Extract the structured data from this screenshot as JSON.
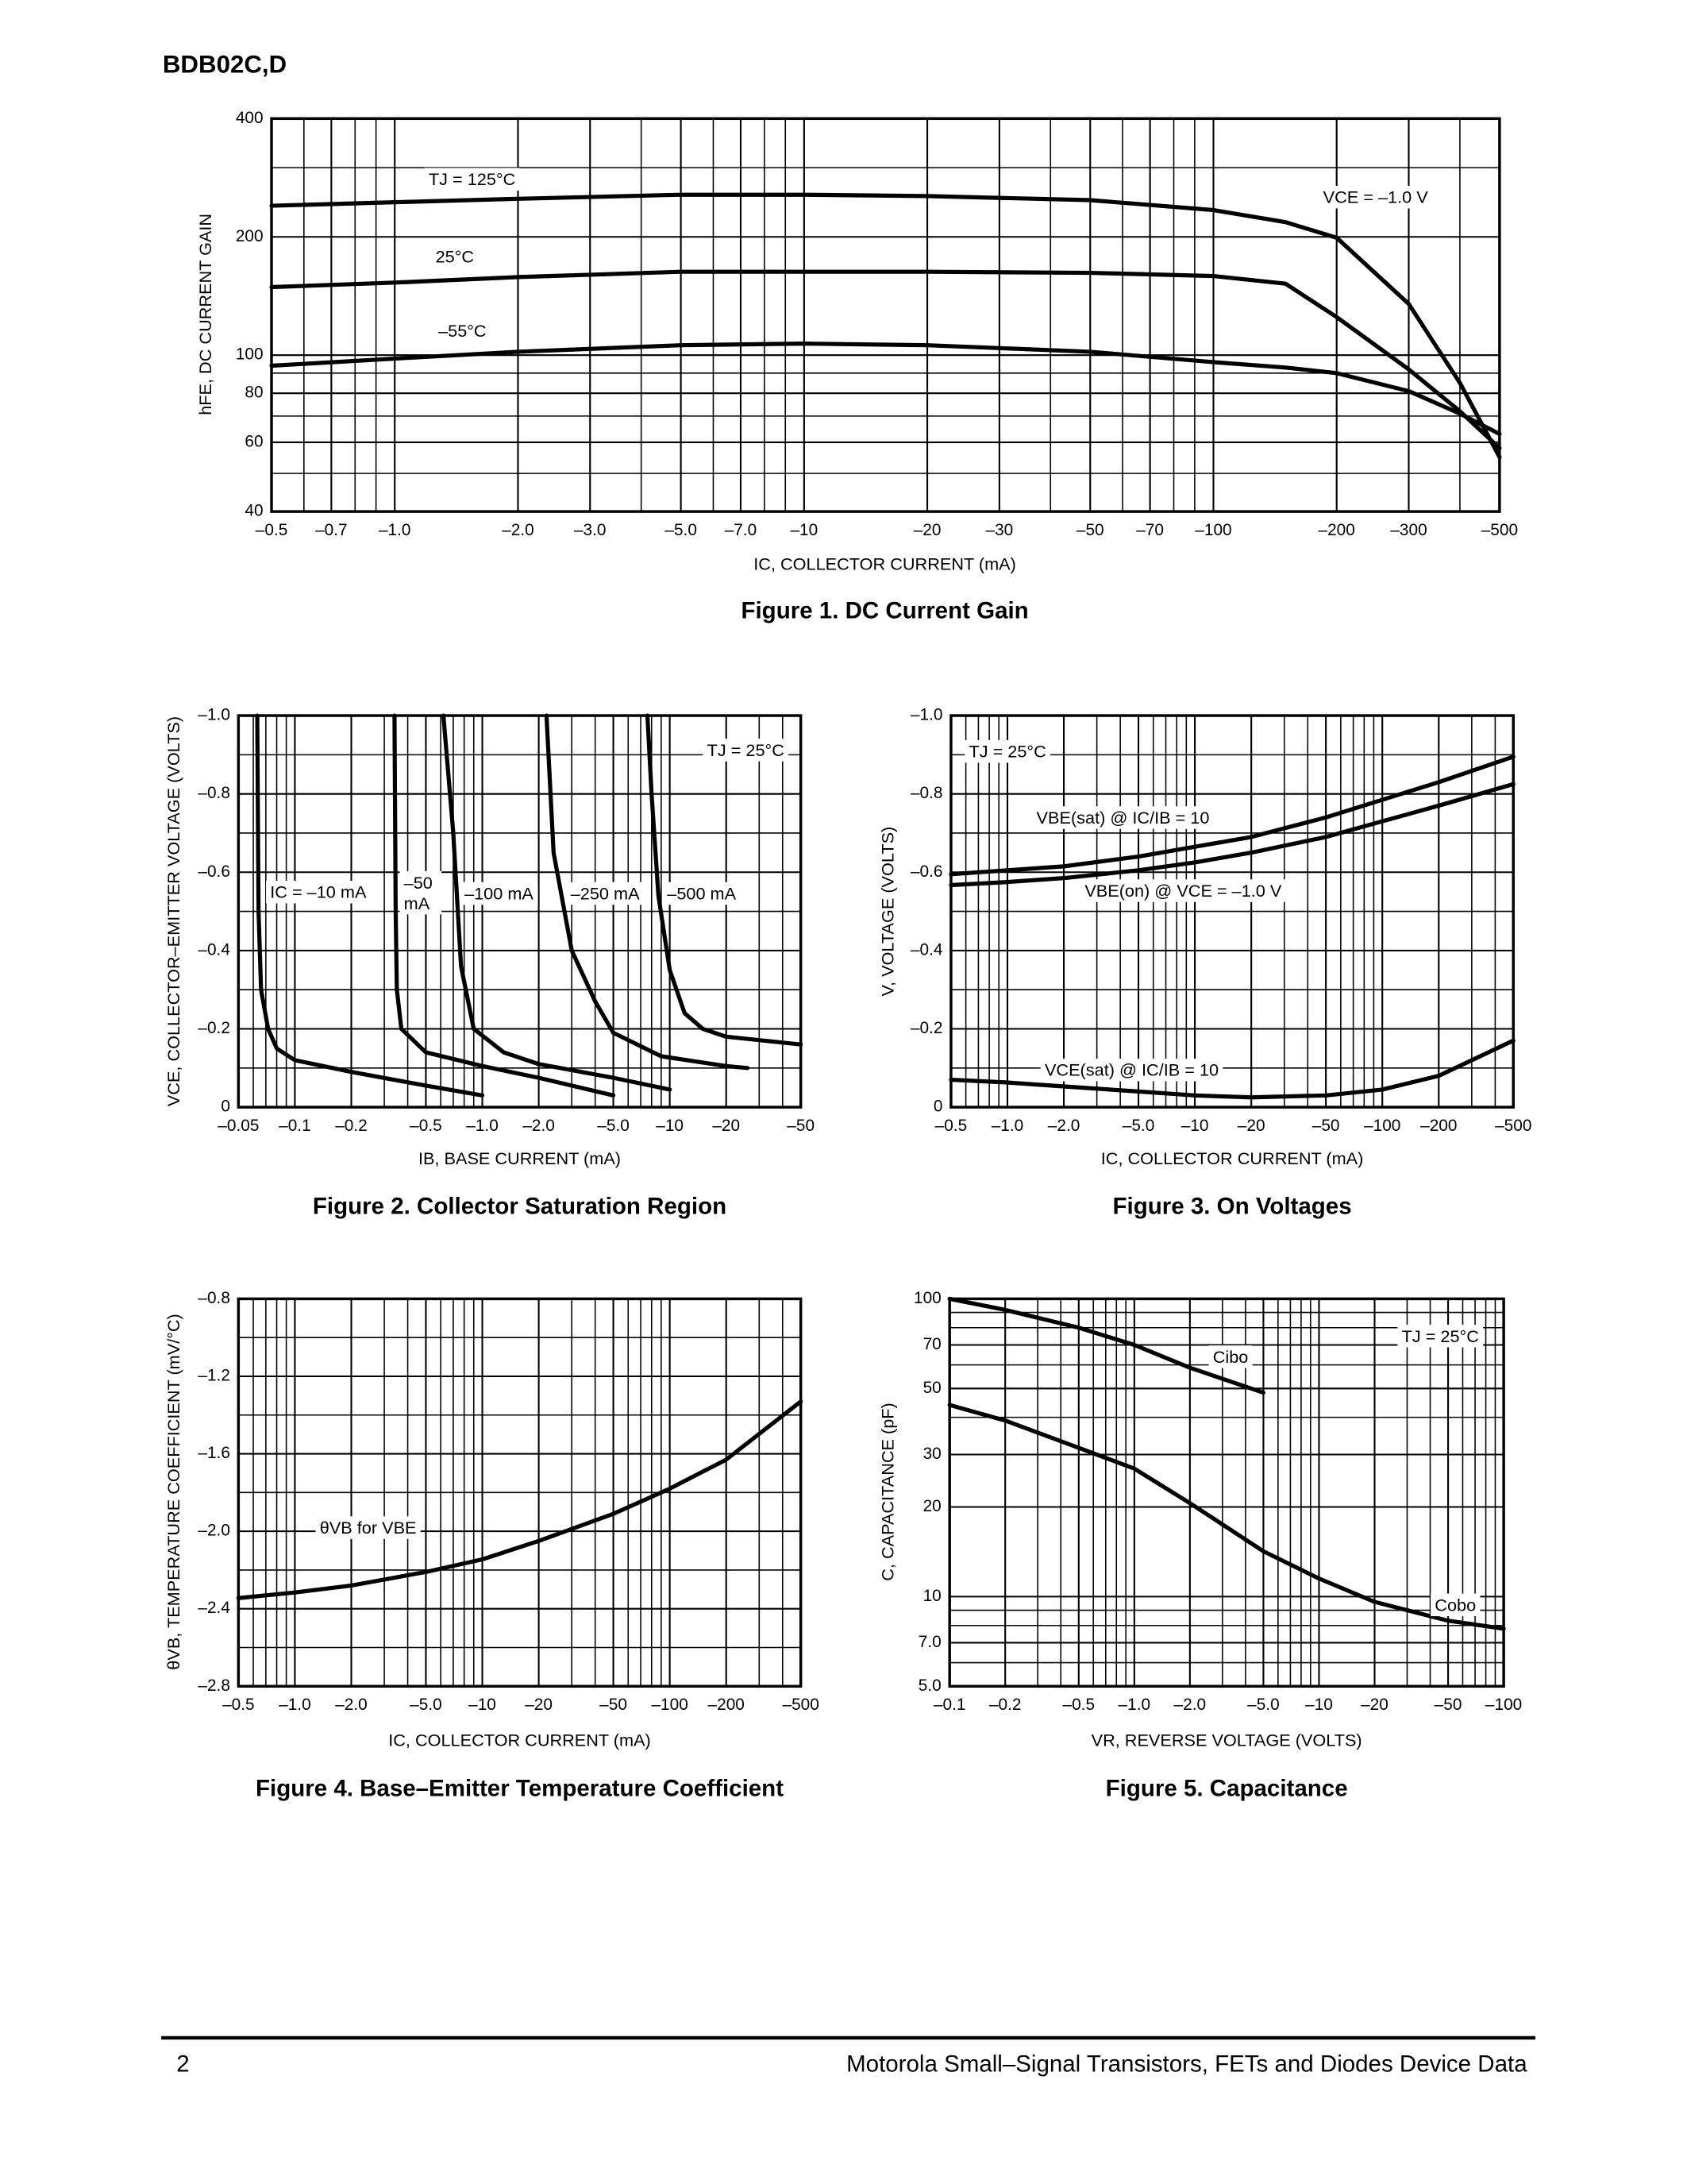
{
  "header": {
    "title": "BDB02C,D"
  },
  "footer": {
    "page": "2",
    "text": "Motorola Small–Signal Transistors, FETs and Diodes Device Data"
  },
  "chart_data": [
    {
      "type": "line",
      "title": "Figure 1. DC Current Gain",
      "x_label": "IC, COLLECTOR CURRENT (mA)",
      "y_label": "hFE, DC CURRENT GAIN",
      "xscale": "log",
      "yscale": "log",
      "grid": true,
      "color": "#000000",
      "xlim": [
        -0.5,
        -500
      ],
      "ylim": [
        40,
        400
      ],
      "xticks": [
        {
          "value": -0.5,
          "label": "–0.5"
        },
        {
          "value": -0.7,
          "label": "–0.7"
        },
        {
          "value": -1.0,
          "label": "–1.0"
        },
        {
          "value": -2.0,
          "label": "–2.0"
        },
        {
          "value": -3.0,
          "label": "–3.0"
        },
        {
          "value": -5.0,
          "label": "–5.0"
        },
        {
          "value": -7.0,
          "label": "–7.0"
        },
        {
          "value": -10,
          "label": "–10"
        },
        {
          "value": -20,
          "label": "–20"
        },
        {
          "value": -30,
          "label": "–30"
        },
        {
          "value": -50,
          "label": "–50"
        },
        {
          "value": -70,
          "label": "–70"
        },
        {
          "value": -100,
          "label": "–100"
        },
        {
          "value": -200,
          "label": "–200"
        },
        {
          "value": -300,
          "label": "–300"
        },
        {
          "value": -500,
          "label": "–500"
        }
      ],
      "yticks": [
        40,
        60,
        80,
        100,
        200,
        400
      ],
      "annotations": [
        "VCE = –1.0 V"
      ],
      "x": [
        -0.5,
        -1,
        -2,
        -5,
        -10,
        -20,
        -50,
        -100,
        -150,
        -200,
        -300,
        -400,
        -500
      ],
      "series": [
        {
          "name": "TJ = 125°C",
          "values": [
            240,
            245,
            250,
            256,
            256,
            254,
            248,
            234,
            218,
            199,
            135,
            85,
            55
          ]
        },
        {
          "name": "25°C",
          "values": [
            149,
            153,
            158,
            163,
            163,
            163,
            162,
            159,
            152,
            125,
            92,
            72,
            58
          ]
        },
        {
          "name": "–55°C",
          "values": [
            94,
            98,
            102,
            106,
            107,
            106,
            102,
            96,
            93,
            90,
            81,
            71,
            63
          ]
        }
      ]
    },
    {
      "type": "line",
      "title": "Figure 2. Collector Saturation Region",
      "x_label": "IB, BASE CURRENT (mA)",
      "y_label": "VCE, COLLECTOR–EMITTER VOLTAGE (VOLTS)",
      "xscale": "log",
      "yscale": "linear",
      "grid": true,
      "color": "#000000",
      "xlim": [
        -0.05,
        -50
      ],
      "ylim": [
        0,
        -1.0
      ],
      "xticks": [
        {
          "value": -0.05,
          "label": "–0.05"
        },
        {
          "value": -0.1,
          "label": "–0.1"
        },
        {
          "value": -0.2,
          "label": "–0.2"
        },
        {
          "value": -0.5,
          "label": "–0.5"
        },
        {
          "value": -1.0,
          "label": "–1.0"
        },
        {
          "value": -2.0,
          "label": "–2.0"
        },
        {
          "value": -5.0,
          "label": "–5.0"
        },
        {
          "value": -10,
          "label": "–10"
        },
        {
          "value": -20,
          "label": "–20"
        },
        {
          "value": -50,
          "label": "–50"
        }
      ],
      "yticks": [
        0,
        {
          "value": -0.2,
          "label": "–0.2"
        },
        {
          "value": -0.4,
          "label": "–0.4"
        },
        {
          "value": -0.6,
          "label": "–0.6"
        },
        {
          "value": -0.8,
          "label": "–0.8"
        },
        {
          "value": -1.0,
          "label": "–1.0"
        }
      ],
      "annotations": [
        "TJ = 25°C"
      ],
      "series": [
        {
          "name": "IC = –10 mA",
          "x": [
            -0.063,
            -0.064,
            -0.066,
            -0.072,
            -0.08,
            -0.1,
            -0.2,
            -0.5,
            -1.0
          ],
          "values": [
            -1.0,
            -0.5,
            -0.3,
            -0.2,
            -0.15,
            -0.12,
            -0.09,
            -0.055,
            -0.03
          ]
        },
        {
          "name": "–50 mA",
          "x": [
            -0.34,
            -0.345,
            -0.35,
            -0.37,
            -0.5,
            -1.0,
            -2.0,
            -5.0
          ],
          "values": [
            -1.0,
            -0.5,
            -0.3,
            -0.2,
            -0.14,
            -0.105,
            -0.075,
            -0.03
          ]
        },
        {
          "name": "–100 mA",
          "x": [
            -0.62,
            -0.7,
            -0.77,
            -0.9,
            -1.3,
            -2.0,
            -5.0,
            -10
          ],
          "values": [
            -1.0,
            -0.7,
            -0.36,
            -0.2,
            -0.14,
            -0.11,
            -0.075,
            -0.045
          ]
        },
        {
          "name": "–250 mA",
          "x": [
            -2.2,
            -2.4,
            -3.0,
            -4.0,
            -5.0,
            -9.0,
            -20,
            -26
          ],
          "values": [
            -1.0,
            -0.65,
            -0.4,
            -0.27,
            -0.19,
            -0.13,
            -0.105,
            -0.1
          ]
        },
        {
          "name": "–500 mA",
          "x": [
            -7.6,
            -8.0,
            -8.7,
            -10,
            -12,
            -15,
            -20,
            -50
          ],
          "values": [
            -1.0,
            -0.8,
            -0.54,
            -0.35,
            -0.24,
            -0.2,
            -0.18,
            -0.16
          ]
        }
      ]
    },
    {
      "type": "line",
      "title": "Figure 3. On Voltages",
      "x_label": "IC, COLLECTOR CURRENT (mA)",
      "y_label": "V, VOLTAGE (VOLTS)",
      "xscale": "log",
      "yscale": "linear",
      "grid": true,
      "color": "#000000",
      "xlim": [
        -0.5,
        -500
      ],
      "ylim": [
        0,
        -1.0
      ],
      "xticks": [
        {
          "value": -0.5,
          "label": "–0.5"
        },
        {
          "value": -1.0,
          "label": "–1.0"
        },
        {
          "value": -2.0,
          "label": "–2.0"
        },
        {
          "value": -5.0,
          "label": "–5.0"
        },
        {
          "value": -10,
          "label": "–10"
        },
        {
          "value": -20,
          "label": "–20"
        },
        {
          "value": -50,
          "label": "–50"
        },
        {
          "value": -100,
          "label": "–100"
        },
        {
          "value": -200,
          "label": "–200"
        },
        {
          "value": -500,
          "label": "–500"
        }
      ],
      "yticks": [
        0,
        {
          "value": -0.2,
          "label": "–0.2"
        },
        {
          "value": -0.4,
          "label": "–0.4"
        },
        {
          "value": -0.6,
          "label": "–0.6"
        },
        {
          "value": -0.8,
          "label": "–0.8"
        },
        {
          "value": -1.0,
          "label": "–1.0"
        }
      ],
      "annotations": [
        "TJ = 25°C"
      ],
      "x": [
        -0.5,
        -1,
        -2,
        -5,
        -10,
        -20,
        -50,
        -100,
        -200,
        -500
      ],
      "series": [
        {
          "name": "VBE(sat) @ IC/IB = 10",
          "values": [
            -0.595,
            -0.605,
            -0.615,
            -0.64,
            -0.665,
            -0.69,
            -0.74,
            -0.785,
            -0.83,
            -0.895
          ]
        },
        {
          "name": "VBE(on) @ VCE = –1.0 V",
          "values": [
            -0.567,
            -0.575,
            -0.585,
            -0.605,
            -0.625,
            -0.65,
            -0.69,
            -0.73,
            -0.77,
            -0.825
          ]
        },
        {
          "name": "VCE(sat) @ IC/IB = 10",
          "values": [
            -0.07,
            -0.063,
            -0.053,
            -0.04,
            -0.03,
            -0.025,
            -0.03,
            -0.045,
            -0.08,
            -0.17
          ]
        }
      ]
    },
    {
      "type": "line",
      "title": "Figure 4. Base–Emitter Temperature Coefficient",
      "x_label": "IC, COLLECTOR CURRENT (mA)",
      "y_label": "θVB, TEMPERATURE COEFFICIENT (mV/°C)",
      "xscale": "log",
      "yscale": "linear",
      "grid": true,
      "color": "#000000",
      "xlim": [
        -0.5,
        -500
      ],
      "ylim": [
        -2.8,
        -0.8
      ],
      "xticks": [
        {
          "value": -0.5,
          "label": "–0.5"
        },
        {
          "value": -1.0,
          "label": "–1.0"
        },
        {
          "value": -2.0,
          "label": "–2.0"
        },
        {
          "value": -5.0,
          "label": "–5.0"
        },
        {
          "value": -10,
          "label": "–10"
        },
        {
          "value": -20,
          "label": "–20"
        },
        {
          "value": -50,
          "label": "–50"
        },
        {
          "value": -100,
          "label": "–100"
        },
        {
          "value": -200,
          "label": "–200"
        },
        {
          "value": -500,
          "label": "–500"
        }
      ],
      "yticks": [
        {
          "value": -2.8,
          "label": "–2.8"
        },
        {
          "value": -2.4,
          "label": "–2.4"
        },
        {
          "value": -2.0,
          "label": "–2.0"
        },
        {
          "value": -1.6,
          "label": "–1.6"
        },
        {
          "value": -1.2,
          "label": "–1.2"
        },
        {
          "value": -0.8,
          "label": "–0.8"
        }
      ],
      "annotations": [],
      "x": [
        -0.5,
        -1,
        -2,
        -5,
        -10,
        -20,
        -50,
        -100,
        -200,
        -500
      ],
      "series": [
        {
          "name": "θVB for VBE",
          "values": [
            -2.345,
            -2.316,
            -2.28,
            -2.21,
            -2.145,
            -2.05,
            -1.91,
            -1.78,
            -1.63,
            -1.33
          ]
        }
      ]
    },
    {
      "type": "line",
      "title": "Figure 5. Capacitance",
      "x_label": "VR, REVERSE VOLTAGE (VOLTS)",
      "y_label": "C, CAPACITANCE (pF)",
      "xscale": "log",
      "yscale": "log",
      "grid": true,
      "color": "#000000",
      "xlim": [
        -0.1,
        -100
      ],
      "ylim": [
        5,
        100
      ],
      "xticks": [
        {
          "value": -0.1,
          "label": "–0.1"
        },
        {
          "value": -0.2,
          "label": "–0.2"
        },
        {
          "value": -0.5,
          "label": "–0.5"
        },
        {
          "value": -1.0,
          "label": "–1.0"
        },
        {
          "value": -2.0,
          "label": "–2.0"
        },
        {
          "value": -5.0,
          "label": "–5.0"
        },
        {
          "value": -10,
          "label": "–10"
        },
        {
          "value": -20,
          "label": "–20"
        },
        {
          "value": -50,
          "label": "–50"
        },
        {
          "value": -100,
          "label": "–100"
        }
      ],
      "yticks": [
        {
          "value": 5,
          "label": "5.0"
        },
        {
          "value": 7,
          "label": "7.0"
        },
        10,
        20,
        30,
        50,
        70,
        100
      ],
      "annotations": [
        "TJ = 25°C"
      ],
      "series": [
        {
          "name": "Cibo",
          "x": [
            -0.1,
            -0.2,
            -0.5,
            -1.0,
            -2.0,
            -5.0
          ],
          "values": [
            100,
            91.8,
            80,
            70,
            58.7,
            48.4
          ]
        },
        {
          "name": "Cobo",
          "x": [
            -0.1,
            -0.2,
            -0.5,
            -1.0,
            -2.0,
            -5.0,
            -10,
            -20,
            -50,
            -100
          ],
          "values": [
            44,
            39,
            31.6,
            26.9,
            20.6,
            14.2,
            11.5,
            9.6,
            8.3,
            7.8
          ]
        }
      ]
    }
  ]
}
